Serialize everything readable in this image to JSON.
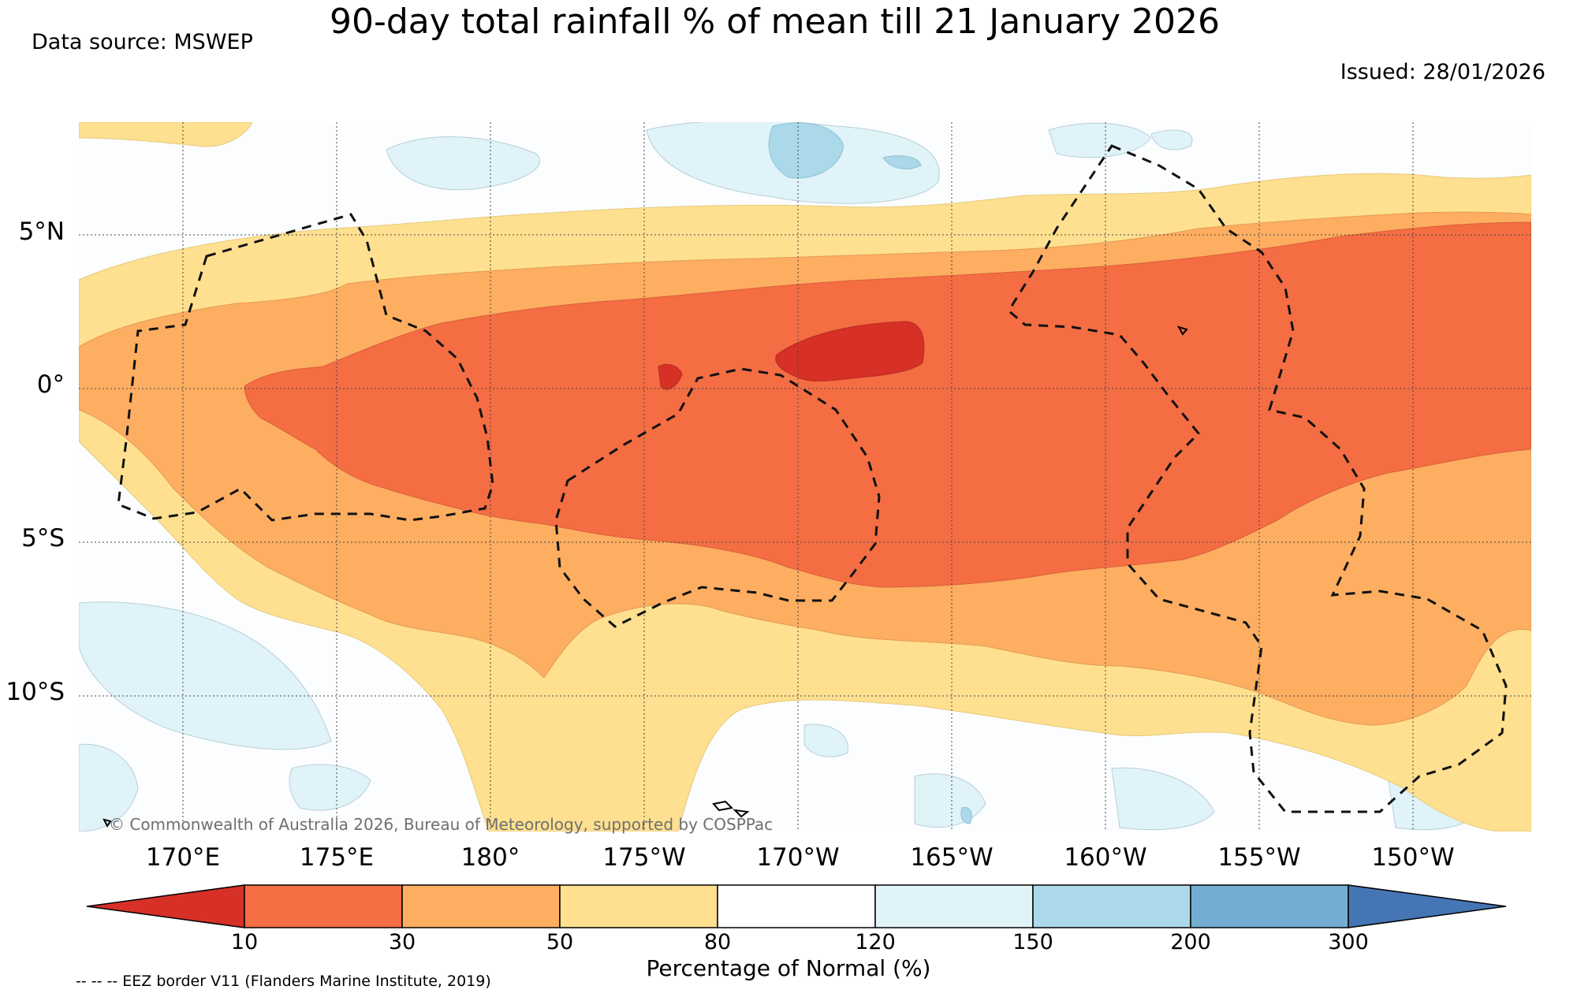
{
  "title": "90-day total rainfall % of mean till 21 January 2026",
  "source": "Data source: MSWEP",
  "issued": "Issued: 28/01/2026",
  "credit": "© Commonwealth of Australia 2026, Bureau of Meteorology, supported by COSPPac",
  "lat_labels": [
    "5°N",
    "0°",
    "5°S",
    "10°S"
  ],
  "lon_labels": [
    "170°E",
    "175°E",
    "180°",
    "175°W",
    "170°W",
    "165°W",
    "160°W",
    "155°W",
    "150°W"
  ],
  "colorbar": {
    "label": "Percentage of Normal (%)",
    "ticks": [
      "10",
      "30",
      "50",
      "80",
      "120",
      "150",
      "200",
      "300"
    ],
    "colors": [
      "#d73027",
      "#f46d43",
      "#fdae61",
      "#fee090",
      "#ffffff",
      "#e0f3f8",
      "#abd9e9",
      "#74add1",
      "#4575b4"
    ]
  },
  "legend_note": "-- -- -- EEZ border V11 (Flanders Marine Institute, 2019)"
}
